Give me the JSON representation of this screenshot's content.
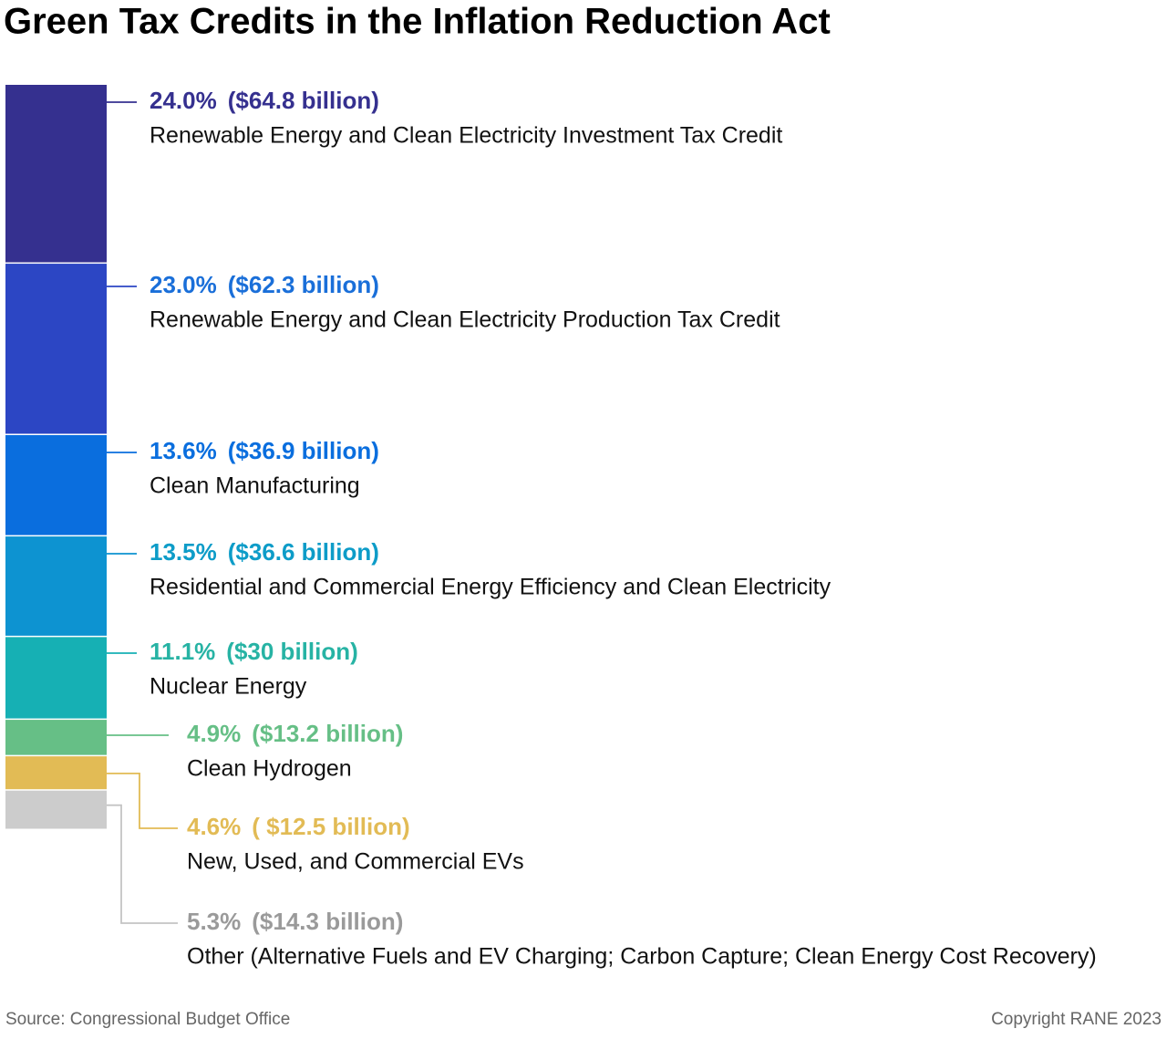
{
  "chart_data": {
    "type": "stacked_column",
    "title": "Green Tax Credits in the Inflation Reduction Act",
    "categories": [
      "Renewable Energy and Clean Electricity Investment Tax Credit",
      "Renewable Energy and Clean Electricity Production Tax Credit",
      "Clean Manufacturing",
      "Residential and Commercial Energy Efficiency and Clean Electricity",
      "Nuclear Energy",
      "Clean Hydrogen",
      "New, Used, and Commercial EVs",
      "Other (Alternative Fuels and EV Charging; Carbon Capture; Clean Energy Cost Recovery)"
    ],
    "values": [
      24.0,
      23.0,
      13.6,
      13.5,
      11.1,
      4.9,
      4.6,
      5.3
    ],
    "value_labels": [
      "24.0%",
      "23.0%",
      "13.6%",
      "13.5%",
      "11.1%",
      "4.9%",
      "4.6%",
      "5.3%"
    ],
    "amount_labels": [
      "($64.8 billion)",
      "($62.3 billion)",
      "($36.9 billion)",
      "($36.6 billion)",
      "($30 billion)",
      "($13.2 billion)",
      "( $12.5 billion)",
      "($14.3 billion)"
    ],
    "colors": [
      "#35308f",
      "#2c46c4",
      "#0a6ede",
      "#0d93d1",
      "#16b0b4",
      "#66bf86",
      "#e2bb55",
      "#cccccc"
    ],
    "label_colors": [
      "#35308f",
      "#1a6fd9",
      "#0a6ede",
      "#0d9cc8",
      "#27b3a4",
      "#66bf86",
      "#e2bb55",
      "#9a9a9a"
    ],
    "source": "Source: Congressional Budget Office",
    "copyright": "Copyright RANE 2023"
  }
}
